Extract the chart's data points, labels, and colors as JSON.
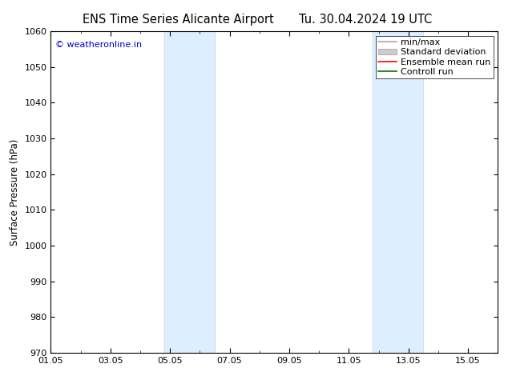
{
  "title_left": "ENS Time Series Alicante Airport",
  "title_right": "Tu. 30.04.2024 19 UTC",
  "ylabel": "Surface Pressure (hPa)",
  "ylim": [
    970,
    1060
  ],
  "yticks": [
    970,
    980,
    990,
    1000,
    1010,
    1020,
    1030,
    1040,
    1050,
    1060
  ],
  "xlim": [
    0,
    15
  ],
  "xtick_positions": [
    0,
    2,
    4,
    6,
    8,
    10,
    12,
    14
  ],
  "xtick_labels": [
    "01.05",
    "03.05",
    "05.05",
    "07.05",
    "09.05",
    "11.05",
    "13.05",
    "15.05"
  ],
  "watermark": "© weatheronline.in",
  "watermark_color": "#0000cc",
  "bg_color": "#ffffff",
  "plot_bg_color": "#ffffff",
  "shaded_bands": [
    {
      "xmin": 3.8,
      "xmax": 5.5,
      "color": "#ddeeff",
      "edge_color": "#bbddee"
    },
    {
      "xmin": 10.8,
      "xmax": 12.5,
      "color": "#ddeeff",
      "edge_color": "#bbddee"
    }
  ],
  "legend_entries": [
    {
      "label": "min/max",
      "color": "#aaaaaa",
      "lw": 1.2,
      "type": "line"
    },
    {
      "label": "Standard deviation",
      "color": "#cccccc",
      "lw": 8,
      "type": "band"
    },
    {
      "label": "Ensemble mean run",
      "color": "#ff0000",
      "lw": 1.2,
      "type": "line"
    },
    {
      "label": "Controll run",
      "color": "#007700",
      "lw": 1.2,
      "type": "line"
    }
  ],
  "title_fontsize": 10.5,
  "axis_fontsize": 8.5,
  "tick_fontsize": 8,
  "legend_fontsize": 8
}
